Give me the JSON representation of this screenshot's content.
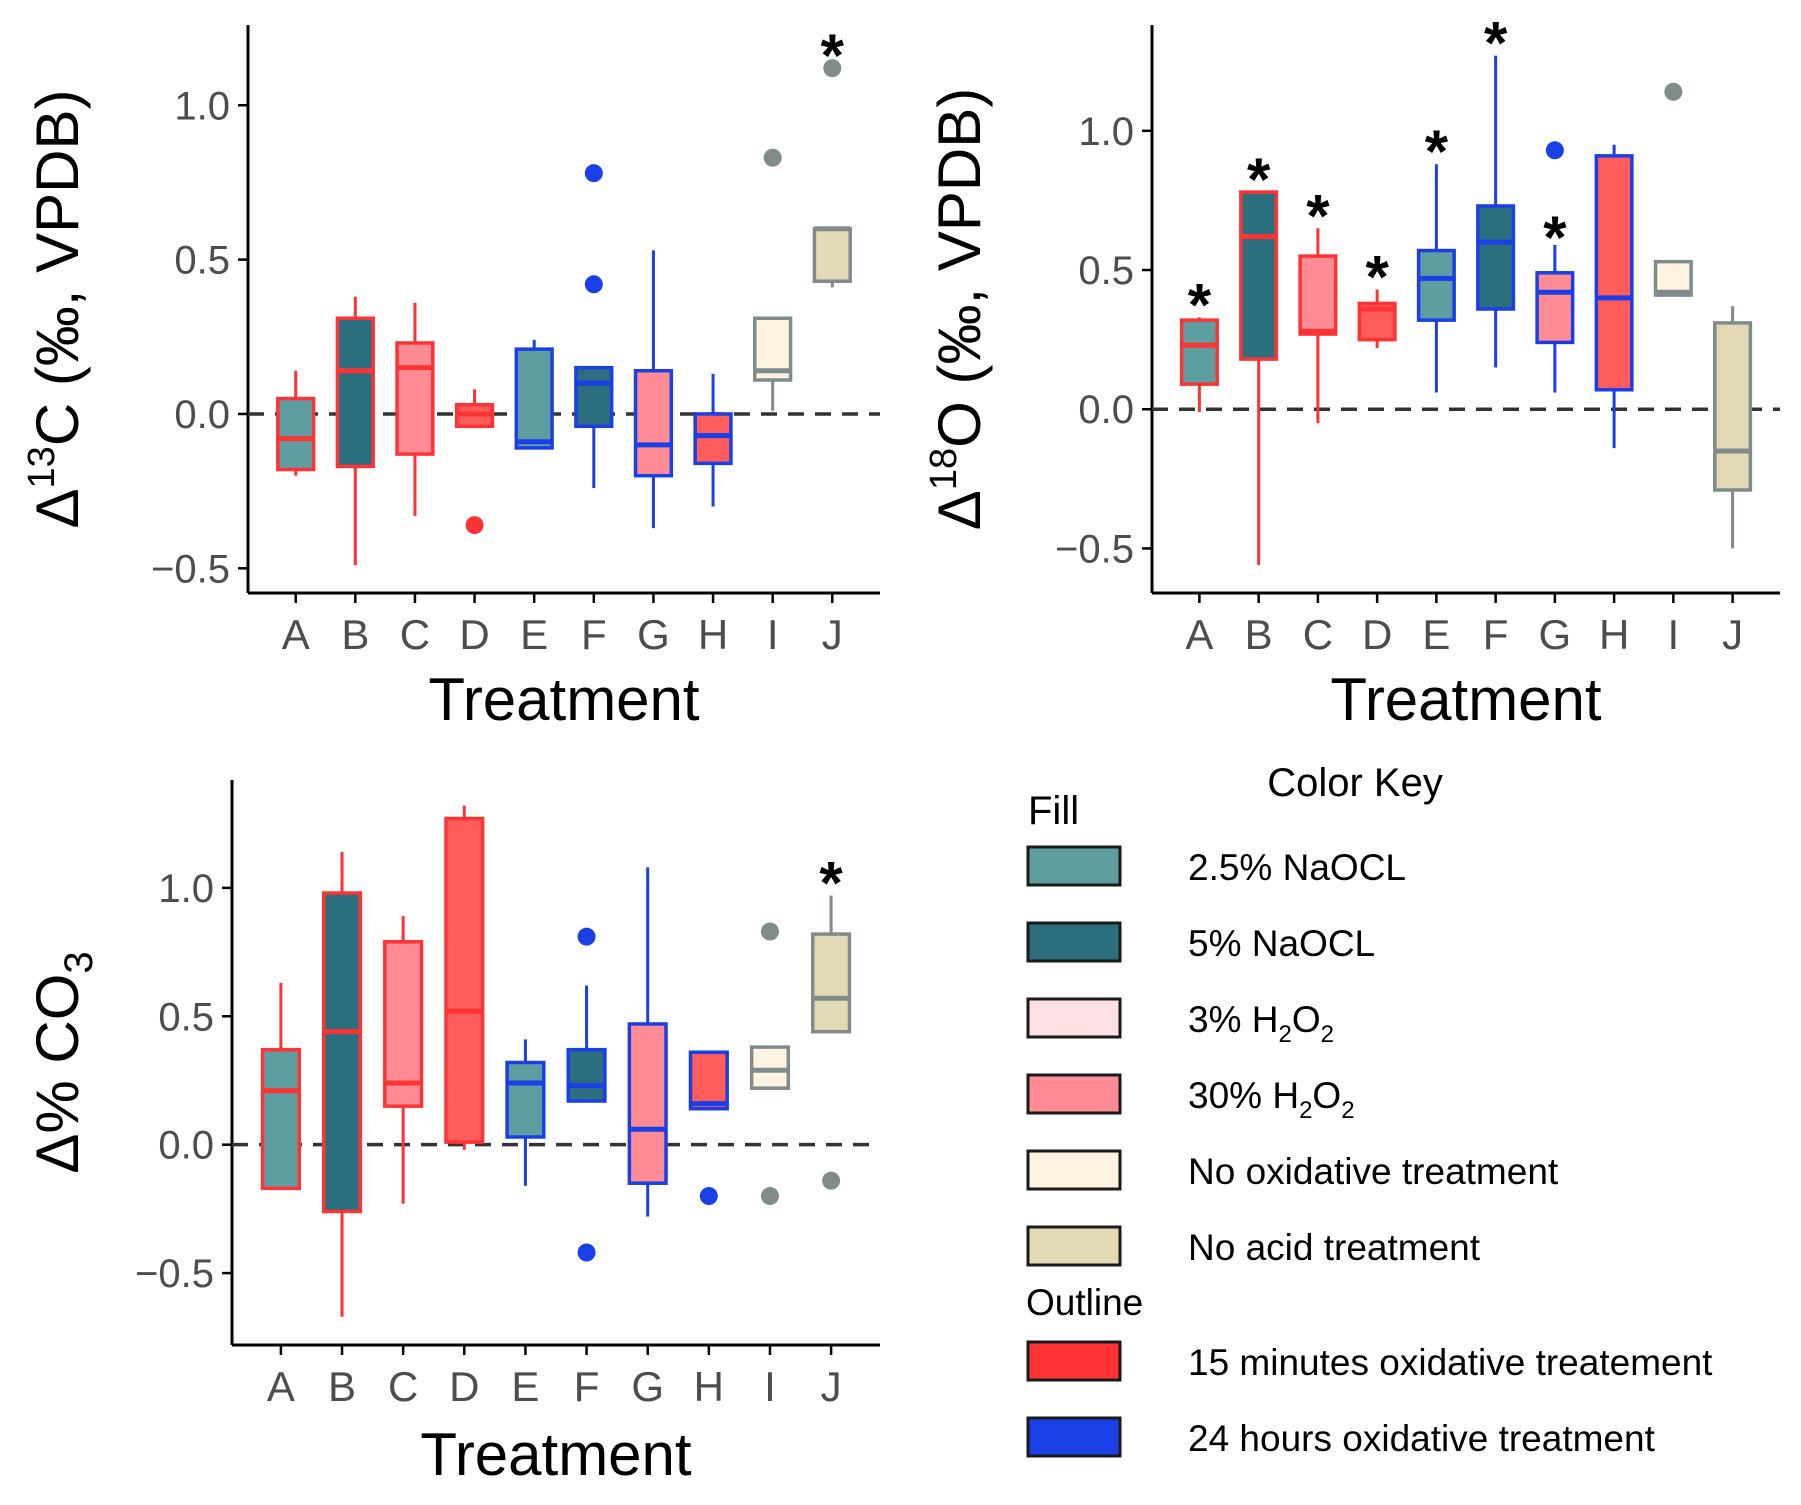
{
  "chart_data": [
    {
      "id": "panel-d13c",
      "type": "box",
      "xlabel": "Treatment",
      "ylabel": {
        "prefix": "Δ",
        "sup": "13",
        "main": "C (‰, VPDB)"
      },
      "categories": [
        "A",
        "B",
        "C",
        "D",
        "E",
        "F",
        "G",
        "H",
        "I",
        "J"
      ],
      "ylim": [
        -0.58,
        1.26
      ],
      "yticks": [
        -0.5,
        0.0,
        0.5,
        1.0
      ],
      "ytick_labels": [
        "−0.5",
        "0.0",
        "0.5",
        "1.0"
      ],
      "reference_line": 0.0,
      "boxes": [
        {
          "cat": "A",
          "fill": "naocl25",
          "outline": "min15",
          "q1": -0.18,
          "median": -0.08,
          "q3": 0.05,
          "lo": -0.2,
          "hi": 0.14,
          "outliers": [],
          "star": false
        },
        {
          "cat": "B",
          "fill": "naocl5",
          "outline": "min15",
          "q1": -0.17,
          "median": 0.14,
          "q3": 0.31,
          "lo": -0.49,
          "hi": 0.38,
          "outliers": [],
          "star": false
        },
        {
          "cat": "C",
          "fill": "h2o2_30",
          "outline": "min15",
          "q1": -0.13,
          "median": 0.15,
          "q3": 0.23,
          "lo": -0.33,
          "hi": 0.36,
          "outliers": [],
          "star": false
        },
        {
          "cat": "D",
          "fill": "h2o2_30_red",
          "outline": "min15",
          "q1": -0.04,
          "median": 0.0,
          "q3": 0.03,
          "lo": -0.04,
          "hi": 0.08,
          "outliers": [
            -0.36
          ],
          "star": false
        },
        {
          "cat": "E",
          "fill": "naocl25",
          "outline": "hr24",
          "q1": -0.11,
          "median": -0.09,
          "q3": 0.21,
          "lo": -0.11,
          "hi": 0.24,
          "outliers": [],
          "star": false
        },
        {
          "cat": "F",
          "fill": "naocl5",
          "outline": "hr24",
          "q1": -0.04,
          "median": 0.1,
          "q3": 0.15,
          "lo": -0.24,
          "hi": 0.15,
          "outliers": [
            0.42,
            0.78
          ],
          "star": false
        },
        {
          "cat": "G",
          "fill": "h2o2_30",
          "outline": "hr24",
          "q1": -0.2,
          "median": -0.1,
          "q3": 0.14,
          "lo": -0.37,
          "hi": 0.53,
          "outliers": [],
          "star": false
        },
        {
          "cat": "H",
          "fill": "h2o2_30_red",
          "outline": "hr24",
          "q1": -0.16,
          "median": -0.07,
          "q3": 0.0,
          "lo": -0.3,
          "hi": 0.13,
          "outliers": [],
          "star": false
        },
        {
          "cat": "I",
          "fill": "no_ox",
          "outline": "grey",
          "q1": 0.11,
          "median": 0.14,
          "q3": 0.31,
          "lo": 0.01,
          "hi": 0.31,
          "outliers": [
            0.83
          ],
          "star": false
        },
        {
          "cat": "J",
          "fill": "no_acid",
          "outline": "grey",
          "q1": 0.43,
          "median": 0.6,
          "q3": 0.6,
          "lo": 0.41,
          "hi": 0.6,
          "outliers": [
            1.12
          ],
          "star": true
        }
      ]
    },
    {
      "id": "panel-d18o",
      "type": "box",
      "xlabel": "Treatment",
      "ylabel": {
        "prefix": "Δ",
        "sup": "18",
        "main": "O (‰, VPDB)"
      },
      "categories": [
        "A",
        "B",
        "C",
        "D",
        "E",
        "F",
        "G",
        "H",
        "I",
        "J"
      ],
      "ylim": [
        -0.66,
        1.38
      ],
      "yticks": [
        -0.5,
        0.0,
        0.5,
        1.0
      ],
      "ytick_labels": [
        "−0.5",
        "0.0",
        "0.5",
        "1.0"
      ],
      "reference_line": 0.0,
      "boxes": [
        {
          "cat": "A",
          "fill": "naocl25",
          "outline": "min15",
          "q1": 0.09,
          "median": 0.23,
          "q3": 0.32,
          "lo": -0.01,
          "hi": 0.33,
          "outliers": [],
          "star": true
        },
        {
          "cat": "B",
          "fill": "naocl5",
          "outline": "min15",
          "q1": 0.18,
          "median": 0.62,
          "q3": 0.78,
          "lo": -0.56,
          "hi": 0.78,
          "outliers": [],
          "star": true
        },
        {
          "cat": "C",
          "fill": "h2o2_30",
          "outline": "min15",
          "q1": 0.27,
          "median": 0.28,
          "q3": 0.55,
          "lo": -0.05,
          "hi": 0.65,
          "outliers": [],
          "star": true
        },
        {
          "cat": "D",
          "fill": "h2o2_30_red",
          "outline": "min15",
          "q1": 0.25,
          "median": 0.36,
          "q3": 0.38,
          "lo": 0.22,
          "hi": 0.43,
          "outliers": [],
          "star": true
        },
        {
          "cat": "E",
          "fill": "naocl25",
          "outline": "hr24",
          "q1": 0.32,
          "median": 0.47,
          "q3": 0.57,
          "lo": 0.06,
          "hi": 0.88,
          "outliers": [],
          "star": true
        },
        {
          "cat": "F",
          "fill": "naocl5",
          "outline": "hr24",
          "q1": 0.36,
          "median": 0.6,
          "q3": 0.73,
          "lo": 0.15,
          "hi": 1.27,
          "outliers": [],
          "star": true
        },
        {
          "cat": "G",
          "fill": "h2o2_30",
          "outline": "hr24",
          "q1": 0.24,
          "median": 0.42,
          "q3": 0.49,
          "lo": 0.06,
          "hi": 0.59,
          "outliers": [
            0.93
          ],
          "star": true
        },
        {
          "cat": "H",
          "fill": "h2o2_30_red",
          "outline": "hr24",
          "q1": 0.07,
          "median": 0.4,
          "q3": 0.91,
          "lo": -0.14,
          "hi": 0.95,
          "outliers": [],
          "star": false
        },
        {
          "cat": "I",
          "fill": "no_ox",
          "outline": "grey",
          "q1": 0.41,
          "median": 0.42,
          "q3": 0.53,
          "lo": 0.41,
          "hi": 0.53,
          "outliers": [
            1.14
          ],
          "star": false
        },
        {
          "cat": "J",
          "fill": "no_acid",
          "outline": "grey",
          "q1": -0.29,
          "median": -0.15,
          "q3": 0.31,
          "lo": -0.5,
          "hi": 0.37,
          "outliers": [],
          "star": false
        }
      ]
    },
    {
      "id": "panel-dco3",
      "type": "box",
      "xlabel": "Treatment",
      "ylabel": {
        "prefix": "Δ",
        "sup": "",
        "main": "% CO",
        "sub": "3"
      },
      "categories": [
        "A",
        "B",
        "C",
        "D",
        "E",
        "F",
        "G",
        "H",
        "I",
        "J"
      ],
      "ylim": [
        -0.78,
        1.42
      ],
      "yticks": [
        -0.5,
        0.0,
        0.5,
        1.0
      ],
      "ytick_labels": [
        "−0.5",
        "0.0",
        "0.5",
        "1.0"
      ],
      "reference_line": 0.0,
      "boxes": [
        {
          "cat": "A",
          "fill": "naocl25",
          "outline": "min15",
          "q1": -0.17,
          "median": 0.21,
          "q3": 0.37,
          "lo": -0.17,
          "hi": 0.63,
          "outliers": [],
          "star": false
        },
        {
          "cat": "B",
          "fill": "naocl5",
          "outline": "min15",
          "q1": -0.26,
          "median": 0.44,
          "q3": 0.98,
          "lo": -0.67,
          "hi": 1.14,
          "outliers": [],
          "star": false
        },
        {
          "cat": "C",
          "fill": "h2o2_30",
          "outline": "min15",
          "q1": 0.15,
          "median": 0.24,
          "q3": 0.79,
          "lo": -0.23,
          "hi": 0.89,
          "outliers": [],
          "star": false
        },
        {
          "cat": "D",
          "fill": "h2o2_30_red",
          "outline": "min15",
          "q1": 0.01,
          "median": 0.52,
          "q3": 1.27,
          "lo": -0.02,
          "hi": 1.32,
          "outliers": [],
          "star": false
        },
        {
          "cat": "E",
          "fill": "naocl25",
          "outline": "hr24",
          "q1": 0.03,
          "median": 0.24,
          "q3": 0.32,
          "lo": -0.16,
          "hi": 0.41,
          "outliers": [],
          "star": false
        },
        {
          "cat": "F",
          "fill": "naocl5",
          "outline": "hr24",
          "q1": 0.17,
          "median": 0.23,
          "q3": 0.37,
          "lo": 0.17,
          "hi": 0.62,
          "outliers": [
            -0.42,
            0.81
          ],
          "star": false
        },
        {
          "cat": "G",
          "fill": "h2o2_30",
          "outline": "hr24",
          "q1": -0.15,
          "median": 0.06,
          "q3": 0.47,
          "lo": -0.28,
          "hi": 1.08,
          "outliers": [],
          "star": false
        },
        {
          "cat": "H",
          "fill": "h2o2_30_red",
          "outline": "hr24",
          "q1": 0.14,
          "median": 0.16,
          "q3": 0.36,
          "lo": 0.14,
          "hi": 0.36,
          "outliers": [
            -0.2
          ],
          "star": false
        },
        {
          "cat": "I",
          "fill": "no_ox",
          "outline": "grey",
          "q1": 0.22,
          "median": 0.29,
          "q3": 0.38,
          "lo": 0.22,
          "hi": 0.38,
          "outliers": [
            -0.2,
            0.83
          ],
          "star": false
        },
        {
          "cat": "J",
          "fill": "no_acid",
          "outline": "grey",
          "q1": 0.44,
          "median": 0.57,
          "q3": 0.82,
          "lo": 0.44,
          "hi": 0.97,
          "outliers": [
            -0.14
          ],
          "star": true
        }
      ]
    }
  ],
  "colors": {
    "naocl25": "#5f9ea0",
    "naocl5": "#2b6e7d",
    "h2o2_3": "#fde0e3",
    "h2o2_30": "#ff8c94",
    "h2o2_30_red": "#ff5c5c",
    "no_ox": "#fdf3e0",
    "no_acid": "#e3d9b4",
    "min15": "#ff3333",
    "hr24": "#1a3fe6",
    "grey": "#7f8c8a",
    "star": "#000000",
    "reference": "#333333"
  },
  "legend": {
    "title": "Color Key",
    "fill_heading": "Fill",
    "outline_heading": "Outline",
    "fill_items": [
      {
        "label": "2.5% NaOCL",
        "color_key": "naocl25"
      },
      {
        "label": "5% NaOCL",
        "color_key": "naocl5"
      },
      {
        "label": "3% H",
        "sub1": "2",
        "mid": "O",
        "sub2": "2",
        "color_key": "h2o2_3"
      },
      {
        "label": "30% H",
        "sub1": "2",
        "mid": "O",
        "sub2": "2",
        "color_key": "h2o2_30"
      },
      {
        "label": "No oxidative treatment",
        "color_key": "no_ox"
      },
      {
        "label": "No acid treatment",
        "color_key": "no_acid"
      }
    ],
    "outline_items": [
      {
        "label": "15 minutes oxidative treatement",
        "color_key": "min15"
      },
      {
        "label": "24 hours oxidative treatment",
        "color_key": "hr24"
      }
    ],
    "star_glyph": "*"
  }
}
